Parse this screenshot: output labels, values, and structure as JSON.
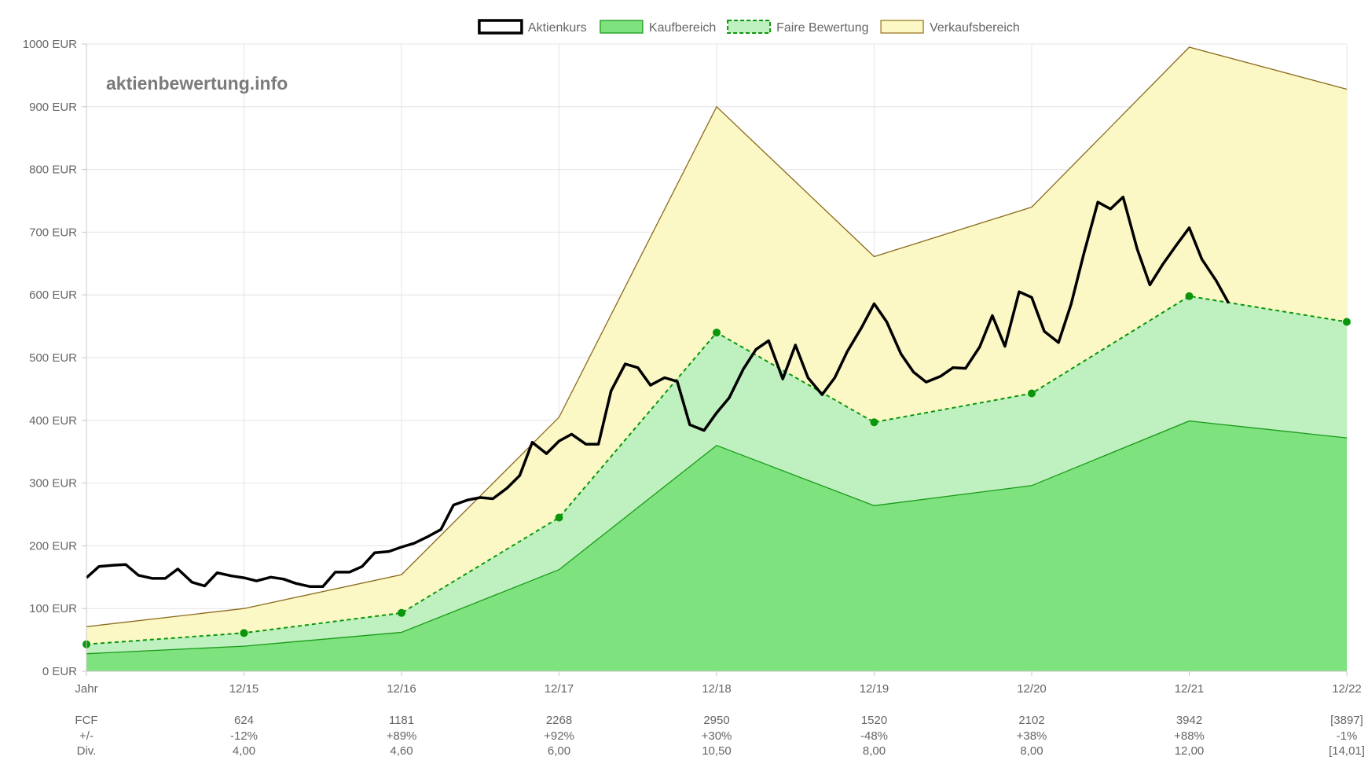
{
  "watermark": "aktienbewertung.info",
  "chart_data": {
    "type": "area",
    "currency_unit": "EUR",
    "ylim": [
      0,
      1000
    ],
    "yticks": [
      0,
      100,
      200,
      300,
      400,
      500,
      600,
      700,
      800,
      900,
      1000
    ],
    "ytick_labels": [
      "0 EUR",
      "100 EUR",
      "200 EUR",
      "300 EUR",
      "400 EUR",
      "500 EUR",
      "600 EUR",
      "700 EUR",
      "800 EUR",
      "900 EUR",
      "1000 EUR"
    ],
    "xlim": [
      2014,
      2022
    ],
    "x_tick_labels": [
      "Jahr",
      "12/15",
      "12/16",
      "12/17",
      "12/18",
      "12/19",
      "12/20",
      "12/21",
      "12/22"
    ],
    "grid": true,
    "legend_position": "top",
    "legend": [
      {
        "name": "Aktienkurs",
        "swatch": "line",
        "color": "#000000"
      },
      {
        "name": "Kaufbereich",
        "swatch": "fill",
        "color": "#7ee27e",
        "border": "#1a9b1a"
      },
      {
        "name": "Faire Bewertung",
        "swatch": "dashed",
        "color": "#bff0bf",
        "border": "#0a960a"
      },
      {
        "name": "Verkaufsbereich",
        "swatch": "fill",
        "color": "#fbf8c6",
        "border": "#9b7a24"
      }
    ],
    "band_years": [
      2014,
      2015,
      2016,
      2017,
      2018,
      2019,
      2020,
      2021,
      2022
    ],
    "series": [
      {
        "name": "Kaufbereich",
        "color": "#7ee27e",
        "line_color": "#1a9b1a",
        "values": [
          28,
          40,
          62,
          162,
          360,
          264,
          296,
          399,
          372
        ]
      },
      {
        "name": "Faire Bewertung",
        "color": "#bff0bf",
        "line_color": "#0a960a",
        "values": [
          43,
          61,
          93,
          245,
          540,
          397,
          443,
          598,
          557
        ]
      },
      {
        "name": "Verkaufsbereich",
        "color": "#fbf8c6",
        "line_color": "#8b6a1c",
        "values": [
          71,
          100,
          154,
          405,
          900,
          661,
          740,
          995,
          928
        ]
      }
    ],
    "price": {
      "name": "Aktienkurs",
      "color": "#000000",
      "x": [
        2014.0,
        2014.08,
        2014.17,
        2014.25,
        2014.33,
        2014.42,
        2014.5,
        2014.58,
        2014.67,
        2014.75,
        2014.83,
        2014.92,
        2015.0,
        2015.08,
        2015.17,
        2015.25,
        2015.33,
        2015.42,
        2015.5,
        2015.58,
        2015.67,
        2015.75,
        2015.83,
        2015.92,
        2016.0,
        2016.08,
        2016.17,
        2016.25,
        2016.33,
        2016.42,
        2016.5,
        2016.58,
        2016.67,
        2016.75,
        2016.83,
        2016.92,
        2017.0,
        2017.08,
        2017.17,
        2017.25,
        2017.33,
        2017.42,
        2017.5,
        2017.58,
        2017.67,
        2017.75,
        2017.83,
        2017.92,
        2018.0,
        2018.08,
        2018.17,
        2018.25,
        2018.33,
        2018.42,
        2018.5,
        2018.58,
        2018.67,
        2018.75,
        2018.83,
        2018.92,
        2019.0,
        2019.08,
        2019.17,
        2019.25,
        2019.33,
        2019.42,
        2019.5,
        2019.58,
        2019.67,
        2019.75,
        2019.83,
        2019.92,
        2020.0,
        2020.08,
        2020.17,
        2020.25,
        2020.33,
        2020.42,
        2020.5,
        2020.58,
        2020.67,
        2020.75,
        2020.83,
        2020.92,
        2021.0,
        2021.08,
        2021.17,
        2021.25
      ],
      "values": [
        149,
        167,
        169,
        170,
        153,
        148,
        148,
        163,
        142,
        136,
        157,
        152,
        149,
        144,
        150,
        147,
        140,
        135,
        135,
        158,
        158,
        167,
        189,
        191,
        198,
        204,
        215,
        226,
        265,
        273,
        277,
        275,
        292,
        312,
        365,
        347,
        367,
        378,
        362,
        362,
        447,
        490,
        484,
        456,
        468,
        462,
        393,
        384,
        412,
        436,
        482,
        513,
        527,
        466,
        520,
        468,
        441,
        468,
        510,
        548,
        586,
        557,
        506,
        477,
        461,
        470,
        484,
        483,
        517,
        567,
        518,
        605,
        596,
        542,
        524,
        585,
        665,
        748,
        737,
        756,
        673,
        616,
        648,
        680,
        707,
        657,
        623,
        587
      ]
    },
    "table": {
      "row_labels": [
        "FCF",
        "+/-",
        "Div."
      ],
      "rows": [
        [
          "624",
          "1181",
          "2268",
          "2950",
          "1520",
          "2102",
          "3942",
          "[3897]"
        ],
        [
          "-12%",
          "+89%",
          "+92%",
          "+30%",
          "-48%",
          "+38%",
          "+88%",
          "-1%"
        ],
        [
          "4,00",
          "4,60",
          "6,00",
          "10,50",
          "8,00",
          "8,00",
          "12,00",
          "[14,01]"
        ]
      ]
    }
  }
}
